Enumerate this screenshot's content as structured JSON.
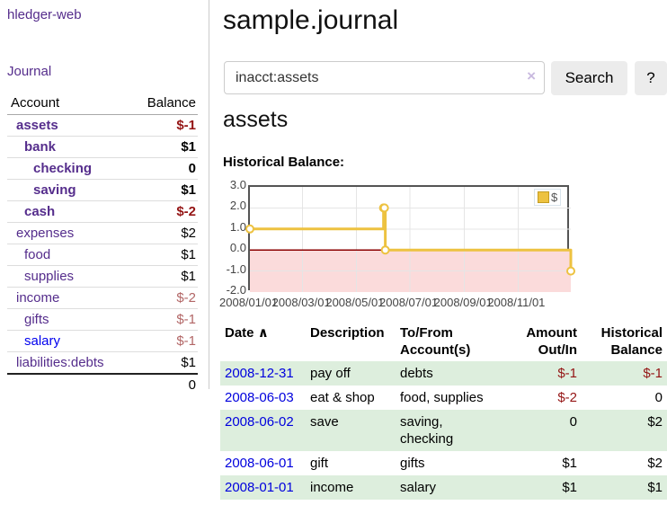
{
  "sidebar": {
    "brand": "hledger-web",
    "journal_link": "Journal",
    "accounts": {
      "headers": [
        "Account",
        "Balance"
      ],
      "rows": [
        {
          "name": "assets",
          "depth": 1,
          "bold": true,
          "balance": "$-1",
          "balance_color": "neg-strong"
        },
        {
          "name": "bank",
          "depth": 2,
          "bold": true,
          "balance": "$1",
          "balance_color": "normal"
        },
        {
          "name": "checking",
          "depth": 3,
          "bold": true,
          "balance": "0",
          "balance_color": "normal"
        },
        {
          "name": "saving",
          "depth": 3,
          "bold": true,
          "balance": "$1",
          "balance_color": "normal"
        },
        {
          "name": "cash",
          "depth": 2,
          "bold": true,
          "balance": "$-2",
          "balance_color": "neg-strong"
        },
        {
          "name": "expenses",
          "depth": 1,
          "bold": false,
          "balance": "$2",
          "balance_color": "normal"
        },
        {
          "name": "food",
          "depth": 2,
          "bold": false,
          "balance": "$1",
          "balance_color": "normal"
        },
        {
          "name": "supplies",
          "depth": 2,
          "bold": false,
          "balance": "$1",
          "balance_color": "normal"
        },
        {
          "name": "income",
          "depth": 1,
          "bold": false,
          "balance": "$-2",
          "balance_color": "neg-soft"
        },
        {
          "name": "gifts",
          "depth": 2,
          "bold": false,
          "balance": "$-1",
          "balance_color": "neg-soft"
        },
        {
          "name": "salary",
          "depth": 2,
          "bold": false,
          "balance": "$-1",
          "balance_color": "neg-soft",
          "link_color": "blue"
        },
        {
          "name": "liabilities:debts",
          "depth": 1,
          "bold": false,
          "balance": "$1",
          "balance_color": "normal"
        }
      ],
      "total": "0"
    }
  },
  "header": {
    "title": "sample.journal"
  },
  "search": {
    "value": "inacct:assets",
    "clear_icon": "×",
    "button_label": "Search",
    "help_label": "?"
  },
  "account_page": {
    "heading": "assets",
    "chart_title": "Historical Balance:"
  },
  "chart_data": {
    "type": "line",
    "title": "Historical Balance:",
    "step": true,
    "series": [
      {
        "name": "$",
        "color": "#edc240",
        "points": [
          [
            "2008-01-01",
            1
          ],
          [
            "2008-06-01",
            2
          ],
          [
            "2008-06-02",
            2
          ],
          [
            "2008-06-03",
            0
          ],
          [
            "2008-12-31",
            -1
          ]
        ]
      }
    ],
    "x_range": [
      "2008-01-01",
      "2008-12-31"
    ],
    "x_ticks": [
      "2008/01/01",
      "2008/03/01",
      "2008/05/01",
      "2008/07/01",
      "2008/09/01",
      "2008/11/01"
    ],
    "y_ticks": [
      3.0,
      2.0,
      1.0,
      0.0,
      -1.0,
      -2.0
    ],
    "ylim": [
      -2,
      3
    ],
    "grid": true,
    "negative_region_color": "#fbdbdb",
    "zero_line_color": "#8b0000",
    "grid_color": "#e5e5e5",
    "legend": {
      "label": "$",
      "position": "top-right"
    }
  },
  "register": {
    "headers": [
      "Date",
      "Description",
      "To/From Account(s)",
      "Amount Out/In",
      "Historical Balance"
    ],
    "sort_icon": "∧",
    "rows": [
      {
        "date": "2008-12-31",
        "description": "pay off",
        "accounts": "debts",
        "amount": "$-1",
        "amount_neg": true,
        "balance": "$-1",
        "balance_neg": true
      },
      {
        "date": "2008-06-03",
        "description": "eat & shop",
        "accounts": "food, supplies",
        "amount": "$-2",
        "amount_neg": true,
        "balance": "0",
        "balance_neg": false
      },
      {
        "date": "2008-06-02",
        "description": "save",
        "accounts": "saving, checking",
        "amount": "0",
        "amount_neg": false,
        "balance": "$2",
        "balance_neg": false
      },
      {
        "date": "2008-06-01",
        "description": "gift",
        "accounts": "gifts",
        "amount": "$1",
        "amount_neg": false,
        "balance": "$2",
        "balance_neg": false
      },
      {
        "date": "2008-01-01",
        "description": "income",
        "accounts": "salary",
        "amount": "$1",
        "amount_neg": false,
        "balance": "$1",
        "balance_neg": false
      }
    ]
  }
}
